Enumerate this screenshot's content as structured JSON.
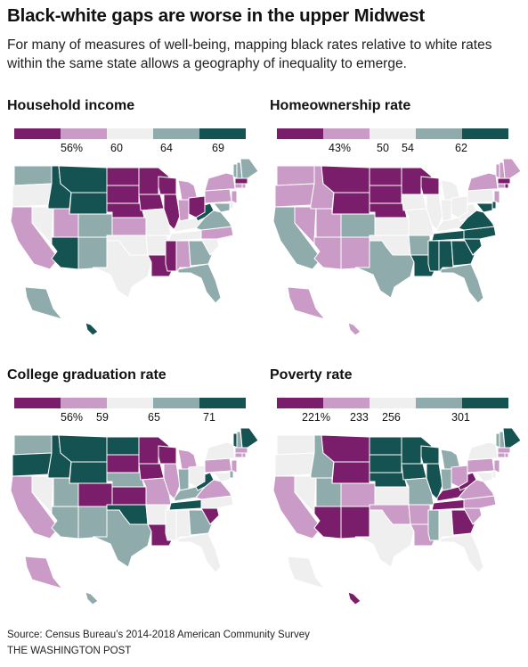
{
  "header": {
    "title": "Black-white gaps are worse in the upper Midwest",
    "subtitle": "For many of measures of well-being, mapping black rates relative to white rates within the same state allows a geography of inequality to emerge."
  },
  "colors": {
    "c1": "#7a1d6a",
    "c2": "#c99bc6",
    "c3": "#efefef",
    "c4": "#8fabab",
    "c5": "#155252"
  },
  "panels": [
    {
      "title": "Household income",
      "ticks": [
        "56%",
        "60",
        "64",
        "69"
      ],
      "states": {
        "WA": 4,
        "OR": 3,
        "CA": 2,
        "NV": 3,
        "ID": 5,
        "MT": 5,
        "WY": 5,
        "UT": 2,
        "AZ": 5,
        "CO": 4,
        "NM": 4,
        "ND": 1,
        "SD": 1,
        "NE": 1,
        "KS": 2,
        "OK": 3,
        "TX": 3,
        "MN": 1,
        "IA": 1,
        "MO": 3,
        "AR": 3,
        "LA": 1,
        "WI": 1,
        "IL": 1,
        "MI": 2,
        "IN": 2,
        "OH": 1,
        "KY": 3,
        "TN": 3,
        "MS": 1,
        "AL": 2,
        "GA": 4,
        "FL": 4,
        "SC": 3,
        "NC": 2,
        "VA": 4,
        "WV": 5,
        "PA": 2,
        "NY": 2,
        "VT": 4,
        "NH": 4,
        "ME": 4,
        "MA": 1,
        "CT": 2,
        "RI": 2,
        "NJ": 2,
        "DE": 3,
        "MD": 4,
        "AK": 4,
        "HI": 5
      }
    },
    {
      "title": "Homeownership rate",
      "ticks": [
        "43%",
        "50",
        "54",
        "62"
      ],
      "states": {
        "WA": 2,
        "OR": 2,
        "CA": 4,
        "NV": 2,
        "ID": 2,
        "MT": 1,
        "WY": 1,
        "UT": 2,
        "AZ": 2,
        "CO": 4,
        "NM": 2,
        "ND": 1,
        "SD": 1,
        "NE": 1,
        "KS": 3,
        "OK": 3,
        "TX": 4,
        "MN": 1,
        "IA": 3,
        "MO": 3,
        "AR": 4,
        "LA": 5,
        "WI": 1,
        "IL": 3,
        "MI": 3,
        "IN": 3,
        "OH": 3,
        "KY": 3,
        "TN": 5,
        "MS": 5,
        "AL": 5,
        "GA": 5,
        "FL": 4,
        "SC": 5,
        "NC": 5,
        "VA": 5,
        "WV": 3,
        "PA": 3,
        "NY": 2,
        "VT": 2,
        "NH": 2,
        "ME": 2,
        "MA": 1,
        "CT": 2,
        "RI": 1,
        "NJ": 2,
        "DE": 5,
        "MD": 5,
        "AK": 2,
        "HI": 2
      }
    },
    {
      "title": "College graduation rate",
      "ticks": [
        "56%",
        "59",
        "65",
        "71"
      ],
      "states": {
        "WA": 4,
        "OR": 5,
        "CA": 2,
        "NV": 3,
        "ID": 5,
        "MT": 5,
        "WY": 5,
        "UT": 4,
        "AZ": 4,
        "CO": 1,
        "NM": 4,
        "ND": 5,
        "SD": 1,
        "NE": 4,
        "KS": 1,
        "OK": 5,
        "TX": 4,
        "MN": 1,
        "IA": 1,
        "MO": 2,
        "AR": 3,
        "LA": 1,
        "WI": 1,
        "IL": 2,
        "MI": 2,
        "IN": 4,
        "OH": 3,
        "KY": 4,
        "TN": 5,
        "MS": 3,
        "AL": 3,
        "GA": 4,
        "FL": 3,
        "SC": 1,
        "NC": 3,
        "VA": 2,
        "WV": 5,
        "PA": 2,
        "NY": 3,
        "VT": 5,
        "NH": 4,
        "ME": 5,
        "MA": 2,
        "CT": 2,
        "RI": 2,
        "NJ": 2,
        "DE": 4,
        "MD": 3,
        "AK": 2,
        "HI": 4
      }
    },
    {
      "title": "Poverty rate",
      "ticks": [
        "221%",
        "233",
        "256",
        "301"
      ],
      "states": {
        "WA": 3,
        "OR": 3,
        "CA": 2,
        "NV": 3,
        "ID": 4,
        "MT": 1,
        "WY": 1,
        "UT": 4,
        "AZ": 1,
        "CO": 2,
        "NM": 1,
        "ND": 5,
        "SD": 5,
        "NE": 5,
        "KS": 3,
        "OK": 2,
        "TX": 3,
        "MN": 5,
        "IA": 5,
        "MO": 4,
        "AR": 2,
        "LA": 2,
        "WI": 5,
        "IL": 5,
        "MI": 4,
        "IN": 4,
        "OH": 2,
        "KY": 1,
        "TN": 1,
        "MS": 4,
        "AL": 3,
        "GA": 1,
        "FL": 3,
        "SC": 2,
        "NC": 2,
        "VA": 2,
        "WV": 1,
        "PA": 2,
        "NY": 3,
        "VT": 4,
        "NH": 4,
        "ME": 5,
        "MA": 2,
        "CT": 2,
        "RI": 2,
        "NJ": 2,
        "DE": 3,
        "MD": 3,
        "AK": 3,
        "HI": 1
      }
    }
  ],
  "footer": {
    "source": "Source: Census Bureau’s 2014-2018 American Community Survey",
    "credit": "THE WASHINGTON POST"
  }
}
